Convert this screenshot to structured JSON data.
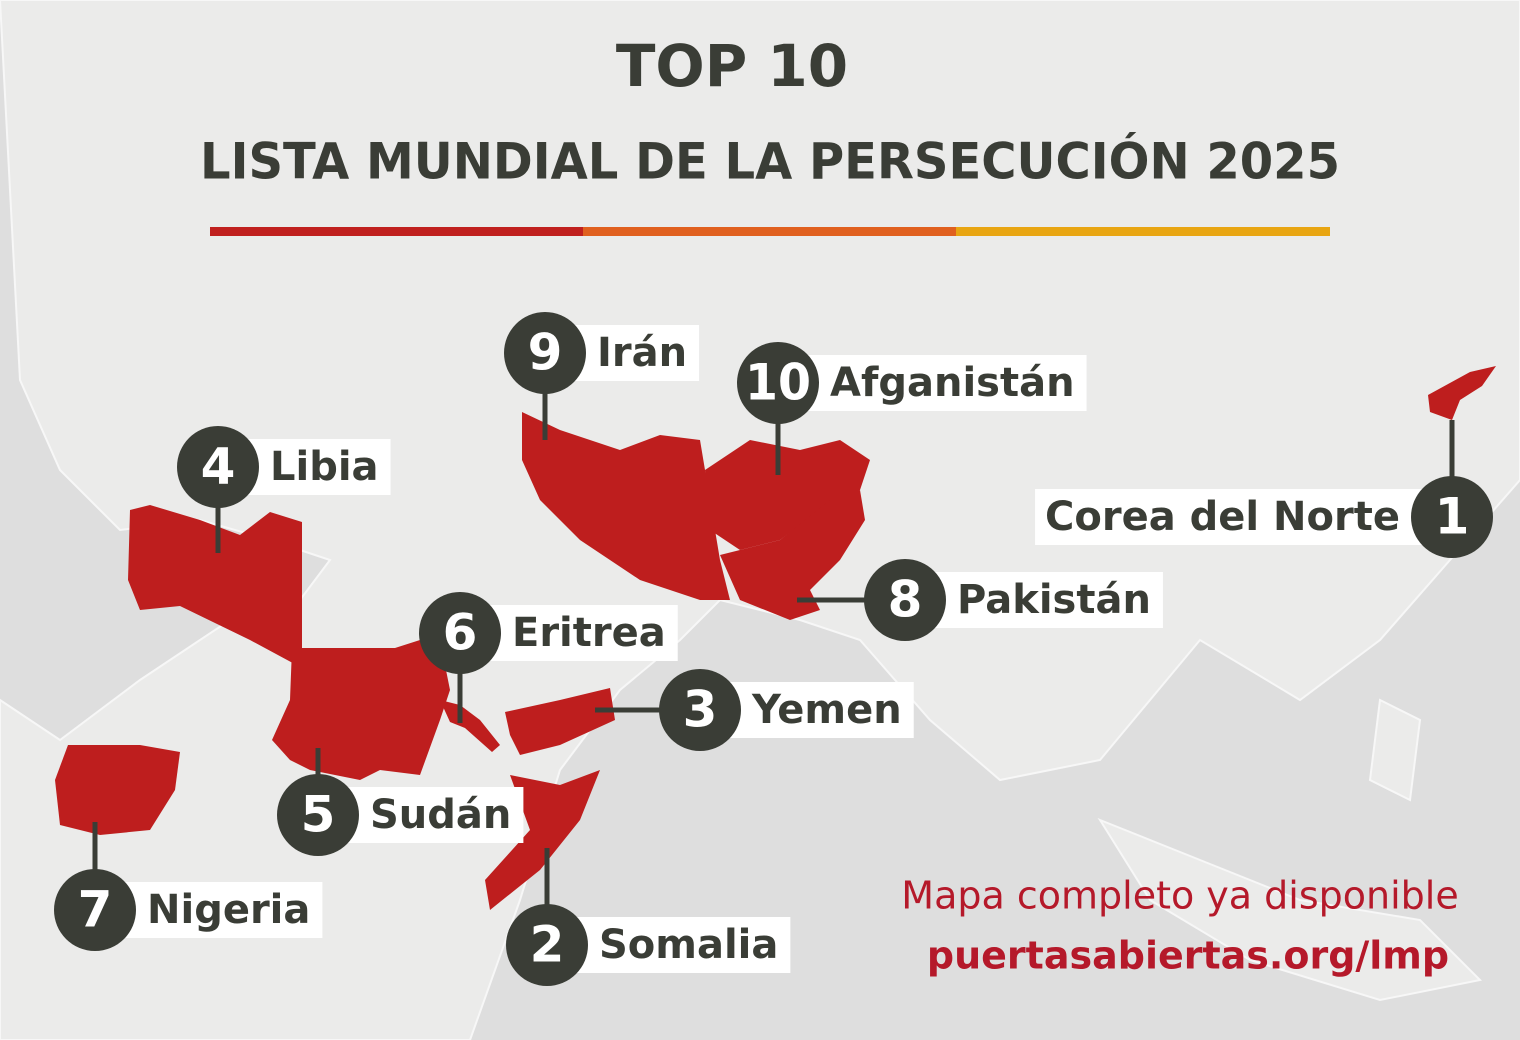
{
  "title": "TOP 10",
  "subtitle": "LISTA MUNDIAL DE LA PERSECUCIÓN 2025",
  "countries": [
    {
      "rank": 1,
      "name": "Corea del Norte"
    },
    {
      "rank": 2,
      "name": "Somalia"
    },
    {
      "rank": 3,
      "name": "Yemen"
    },
    {
      "rank": 4,
      "name": "Libia"
    },
    {
      "rank": 5,
      "name": "Sudán"
    },
    {
      "rank": 6,
      "name": "Eritrea"
    },
    {
      "rank": 7,
      "name": "Nigeria"
    },
    {
      "rank": 8,
      "name": "Pakistán"
    },
    {
      "rank": 9,
      "name": "Irán"
    },
    {
      "rank": 10,
      "name": "Afganistán"
    }
  ],
  "footer": {
    "text": "Mapa completo ya disponible",
    "url": "puertasabiertas.org/lmp"
  }
}
